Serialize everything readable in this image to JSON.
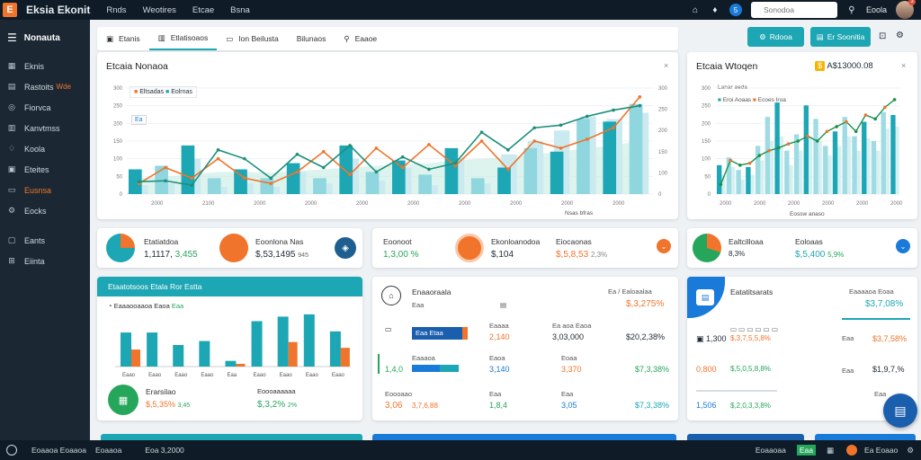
{
  "topbar": {
    "logo": "E",
    "title": "Eksia Ekonit",
    "nav": [
      "Rnds",
      "Weotires",
      "Etcae",
      "Bsna"
    ],
    "badge": "5",
    "search_placeholder": "Sonodoa",
    "user_name": "Eoola",
    "avatar_badge": "3"
  },
  "sidebar": {
    "header": "Nonauta",
    "items": [
      {
        "label": "Eknis",
        "icon": "grid-icon"
      },
      {
        "label": "Rastoits",
        "sub": "Wde",
        "icon": "doc-icon"
      },
      {
        "label": "Fiorvca",
        "icon": "circle-icon"
      },
      {
        "label": "Kanvtmss",
        "icon": "chart-icon"
      },
      {
        "label": "Koola",
        "icon": "bell-icon"
      },
      {
        "label": "Eteites",
        "icon": "list-icon"
      },
      {
        "label": "Eusnsa",
        "icon": "folder-icon",
        "highlight": true
      },
      {
        "label": "Eocks",
        "icon": "gear-icon"
      },
      {
        "label": "Eants",
        "icon": "user-icon"
      },
      {
        "label": "Eiinta",
        "icon": "users-icon"
      }
    ]
  },
  "tabs": [
    {
      "label": "Etanis"
    },
    {
      "label": "Etlatisoaos"
    },
    {
      "label": "Ion Beilusta"
    },
    {
      "label": "Bilunaos"
    },
    {
      "label": "Eaaoe"
    }
  ],
  "buttons": {
    "primary": "Rdooa",
    "secondary": "Er Soonitia"
  },
  "chart_main": {
    "title": "Etcaia Nonaoa",
    "legend": [
      "Eltsadas",
      "Eolrnas"
    ],
    "badge": "Ea"
  },
  "chart_data": [
    {
      "type": "bar",
      "categories": [
        "1",
        "2",
        "3",
        "4",
        "5",
        "6",
        "7",
        "8",
        "9",
        "10",
        "11",
        "12",
        "13",
        "14",
        "15",
        "16",
        "17",
        "18",
        "19",
        "20"
      ],
      "yticks_left": [
        "0",
        "50",
        "100",
        "150",
        "200",
        "250",
        "300"
      ],
      "yticks_right": [
        "0",
        "100",
        "150",
        "200",
        "250",
        "300"
      ],
      "xlabels": [
        "2000",
        "2100",
        "2000",
        "2000",
        "2000",
        "2000",
        "2000",
        "2000",
        "2000",
        "2000"
      ],
      "series": [
        {
          "type": "bar",
          "values": [
            28,
            32,
            55,
            18,
            28,
            18,
            35,
            18,
            55,
            25,
            38,
            22,
            52,
            18,
            30,
            52,
            48,
            85,
            82,
            102
          ]
        },
        {
          "type": "bar",
          "values": [
            10,
            12,
            40,
            8,
            12,
            8,
            25,
            12,
            40,
            15,
            30,
            10,
            40,
            12,
            45,
            60,
            72,
            88,
            85,
            92
          ]
        },
        {
          "type": "line",
          "values": [
            12,
            30,
            18,
            40,
            18,
            12,
            25,
            48,
            22,
            52,
            30,
            56,
            32,
            60,
            28,
            60,
            52,
            62,
            75,
            110
          ]
        },
        {
          "type": "line",
          "values": [
            14,
            15,
            10,
            50,
            40,
            18,
            45,
            30,
            55,
            25,
            42,
            28,
            35,
            70,
            50,
            75,
            78,
            88,
            95,
            100
          ]
        },
        {
          "type": "area",
          "values": [
            18,
            20,
            22,
            25,
            25,
            24,
            26,
            28,
            30,
            32,
            34,
            35,
            38,
            40,
            42,
            45,
            48,
            52,
            55,
            60
          ]
        }
      ],
      "xlabel": "Nsas bfras"
    },
    {
      "type": "bar",
      "categories": [
        "1",
        "2",
        "3",
        "4",
        "5",
        "6",
        "7",
        "8",
        "9",
        "10",
        "11",
        "12",
        "13",
        "14",
        "15",
        "16",
        "17",
        "18",
        "19"
      ],
      "yticks": [
        "0",
        "50",
        "100",
        "150",
        "200",
        "250",
        "300"
      ],
      "xlabels": [
        "2000",
        "2000",
        "2000",
        "2000",
        "2000",
        "2000"
      ],
      "series": [
        {
          "type": "bar",
          "values": [
            30,
            38,
            25,
            28,
            50,
            80,
            95,
            45,
            62,
            92,
            78,
            50,
            65,
            80,
            60,
            75,
            55,
            85,
            82
          ]
        },
        {
          "type": "bar",
          "values": [
            20,
            28,
            15,
            20,
            35,
            55,
            60,
            30,
            45,
            60,
            55,
            40,
            50,
            60,
            45,
            58,
            45,
            68,
            70
          ]
        },
        {
          "type": "line",
          "values": [
            10,
            35,
            30,
            32,
            40,
            45,
            48,
            52,
            55,
            60,
            55,
            65,
            70,
            75,
            65,
            82,
            78,
            90,
            98
          ]
        }
      ],
      "xlabel": "Eossw anaso"
    },
    {
      "type": "bar",
      "categories": [
        "1",
        "2",
        "3",
        "4",
        "5",
        "6",
        "7",
        "8",
        "9"
      ],
      "series": [
        {
          "type": "bar",
          "values": [
            60,
            60,
            38,
            45,
            10,
            80,
            88,
            92,
            62
          ]
        },
        {
          "type": "bar",
          "values": [
            50,
            50,
            30,
            38,
            8,
            60,
            72,
            80,
            55
          ]
        }
      ],
      "xlabels": [
        "Eaao",
        "Eaao",
        "Eaao",
        "Eaao",
        "Eaa",
        "Eaao",
        "Eaao",
        "Eaao",
        "Eaao"
      ]
    }
  ],
  "chart_right": {
    "title": "Etcaia Wtoqen",
    "badge_value": "A$13000.08",
    "legend": [
      "Lanar aeda",
      "Eroi Aoaas",
      "Ecoes Iroa"
    ]
  },
  "kpis": [
    {
      "label": "Etatiatdoa",
      "value": "1,1117, ",
      "delta": "3,455"
    },
    {
      "label": "Eoonlona Nas",
      "value": "$,53,1495",
      "delta": "945"
    },
    {
      "label": "Eoonoot",
      "value": "1,3,00 %",
      "delta": ""
    },
    {
      "label": "Ekonloanodoa",
      "value": "$,104",
      "delta": ""
    },
    {
      "label": "Eiocaonas",
      "value": "$,5,8,53",
      "delta": "2,3%"
    },
    {
      "label": "Ealtcilloaa",
      "value": "8,3%",
      "delta": ""
    },
    {
      "label": "Eoloaas",
      "value": "$,5,400",
      "delta": "5,9%"
    }
  ],
  "bar_card": {
    "title": "Etaatotsoos Etala Ror Estta",
    "sub_label": "Eaaaooaaoa Eaoa",
    "sub_value": "Eaa"
  },
  "bar_card_kpis": [
    {
      "label": "Erarsilao",
      "value": "$,5,35%",
      "delta": "3,45"
    },
    {
      "label": "Eoooaaaaaa",
      "value": "$,3,2%",
      "delta": "2%"
    }
  ],
  "table_mid": {
    "title": "Enaaoraala",
    "col2": "Eaa",
    "col3": "Ea / Ealoaalaa",
    "col3_val": "$,3,275%",
    "rows": [
      {
        "a": "Eaa Etaa",
        "b_label": "Eaaaa",
        "b": "2,140",
        "c_label": "Ea aoa Eaoa",
        "c": "3,03,000",
        "d": "$20,2,38%"
      },
      {
        "a": "Eaaaoa",
        "a_val": "1,4,0",
        "b_label": "Eaoa",
        "b": "3,140",
        "c_label": "Eoaa",
        "c": "3,370",
        "d": "$7,3,38%"
      },
      {
        "a": "Eoooaao",
        "a_val": "3,06",
        "a_delta": "3,7,6,88",
        "b_label": "Eaa",
        "b": "1,8,4",
        "c_label": "Eaa",
        "c": "3,05",
        "d": "$7,3,38%"
      }
    ]
  },
  "table_right": {
    "title": "Eatatitsarats",
    "col_label": "Eaaaaoa Eoaa",
    "col_val": "$3,7,08%",
    "rows": [
      {
        "a": "1,300",
        "b": "$,3,7,5,5,8%",
        "c_label": "Eaa",
        "c": "$3,7,58%"
      },
      {
        "a": "0,800",
        "b": "$,5,0,5,8,8%",
        "c_label": "Eaa",
        "c": "$1,9,7,%"
      },
      {
        "a": "1,506",
        "b": "$,2,0,3,3,8%",
        "c_label": "Eaa",
        "c": ""
      }
    ]
  },
  "statusbar": {
    "left": "Eoaaoa Eoaaoa",
    "mid": "Eoaaoa",
    "mid2": "Eoa 3,2000",
    "right1": "Eoaaoaa",
    "right2": "Eaa",
    "right3": "Ea Eoaao"
  },
  "colors": {
    "teal": "#1da6b4",
    "orange": "#f0742b",
    "green": "#26a65b",
    "dark": "#0f1b26",
    "blue": "#1a7ad9"
  }
}
